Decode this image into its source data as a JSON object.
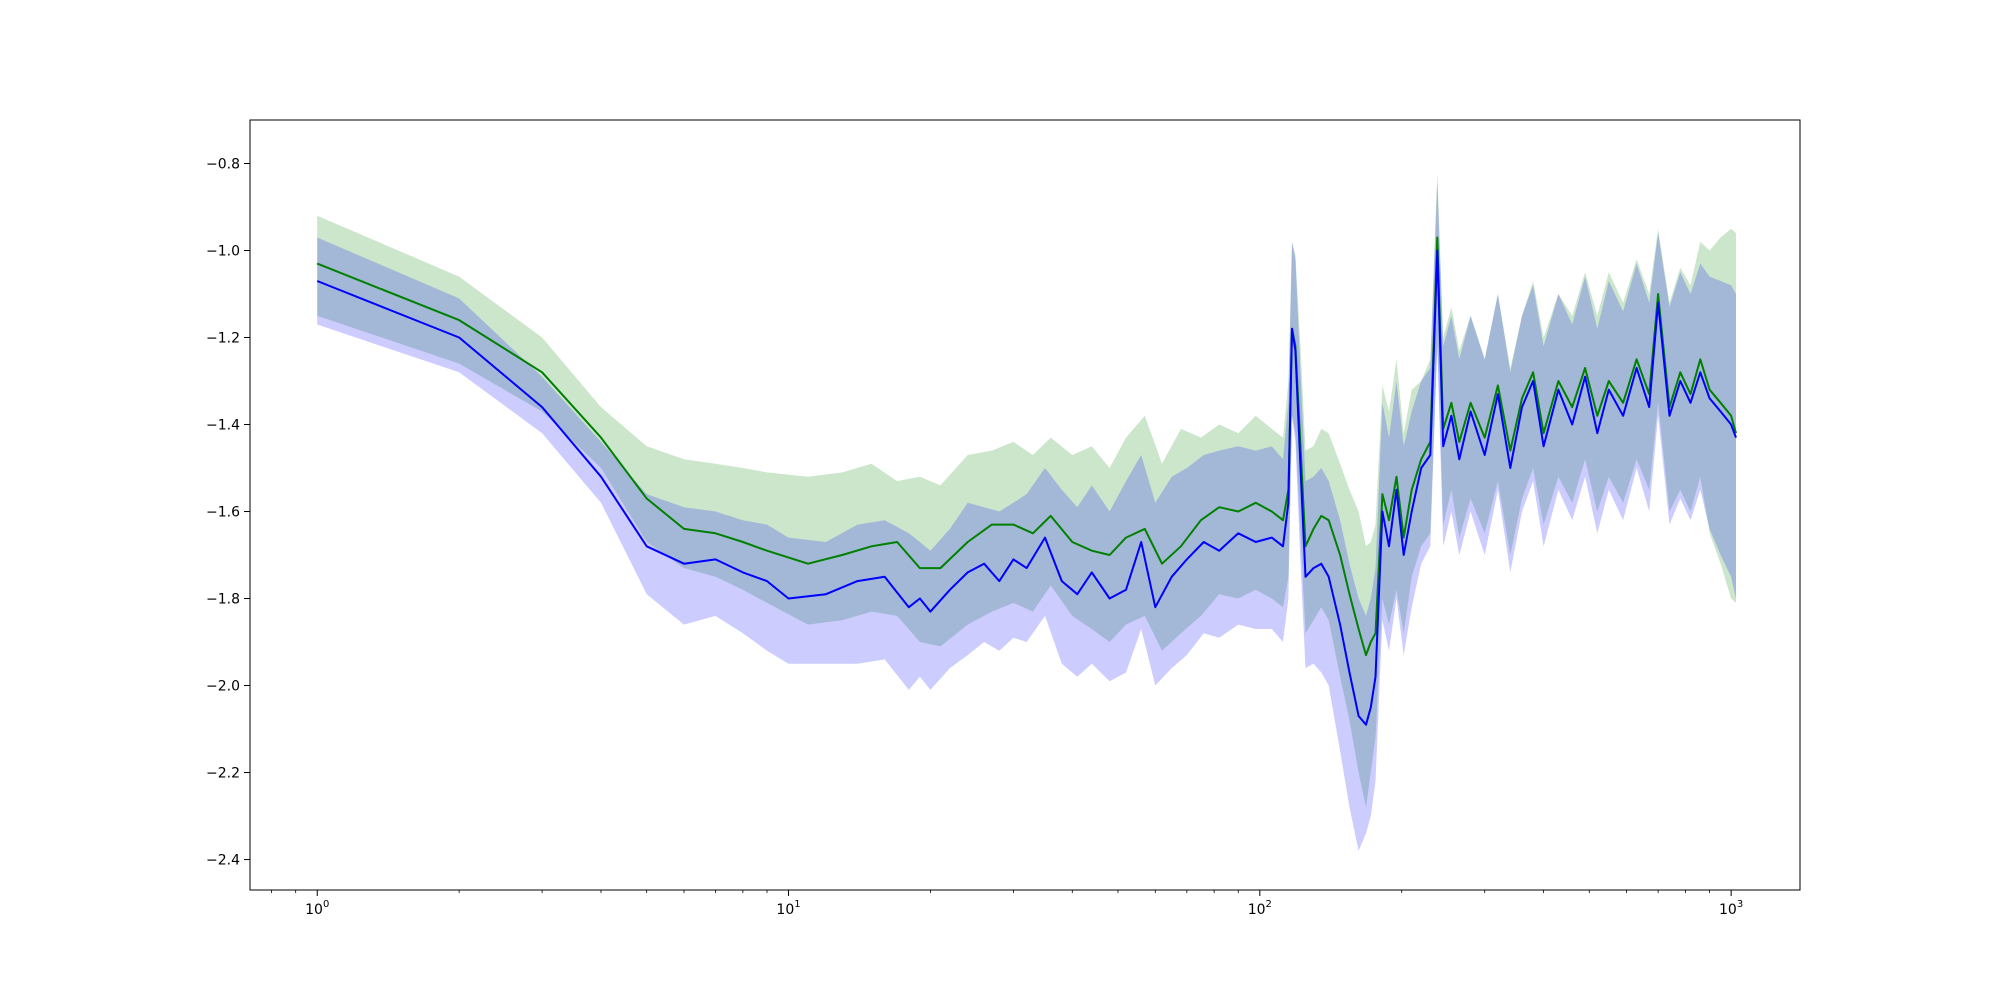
{
  "chart_data": {
    "type": "line",
    "title": "",
    "xlabel": "",
    "ylabel": "",
    "xscale": "log",
    "xlim": [
      0.72,
      1400
    ],
    "ylim": [
      -2.47,
      -0.7
    ],
    "x_ticks": [
      {
        "value": 1,
        "base": "10",
        "exp": "0"
      },
      {
        "value": 10,
        "base": "10",
        "exp": "1"
      },
      {
        "value": 100,
        "base": "10",
        "exp": "2"
      },
      {
        "value": 1000,
        "base": "10",
        "exp": "3"
      }
    ],
    "y_ticks": [
      {
        "value": -0.8,
        "label": "−0.8"
      },
      {
        "value": -1.0,
        "label": "−1.0"
      },
      {
        "value": -1.2,
        "label": "−1.2"
      },
      {
        "value": -1.4,
        "label": "−1.4"
      },
      {
        "value": -1.6,
        "label": "−1.6"
      },
      {
        "value": -1.8,
        "label": "−1.8"
      },
      {
        "value": -2.0,
        "label": "−2.0"
      },
      {
        "value": -2.2,
        "label": "−2.2"
      },
      {
        "value": -2.4,
        "label": "−2.4"
      }
    ],
    "grid": false,
    "legend": false,
    "band_opacity": 0.2,
    "series": [
      {
        "color": "#008000",
        "points": [
          [
            1,
            -1.03,
            -0.92,
            -1.15
          ],
          [
            2,
            -1.16,
            -1.06,
            -1.26
          ],
          [
            3,
            -1.28,
            -1.2,
            -1.37
          ],
          [
            4,
            -1.43,
            -1.36,
            -1.5
          ],
          [
            5,
            -1.57,
            -1.45,
            -1.67
          ],
          [
            6,
            -1.64,
            -1.48,
            -1.73
          ],
          [
            7,
            -1.65,
            -1.49,
            -1.75
          ],
          [
            8,
            -1.67,
            -1.5,
            -1.78
          ],
          [
            9,
            -1.69,
            -1.51,
            -1.81
          ],
          [
            11,
            -1.72,
            -1.52,
            -1.86
          ],
          [
            13,
            -1.7,
            -1.51,
            -1.85
          ],
          [
            15,
            -1.68,
            -1.49,
            -1.83
          ],
          [
            17,
            -1.67,
            -1.53,
            -1.84
          ],
          [
            19,
            -1.73,
            -1.52,
            -1.9
          ],
          [
            21,
            -1.73,
            -1.54,
            -1.91
          ],
          [
            24,
            -1.67,
            -1.47,
            -1.86
          ],
          [
            27,
            -1.63,
            -1.46,
            -1.83
          ],
          [
            30,
            -1.63,
            -1.44,
            -1.81
          ],
          [
            33,
            -1.65,
            -1.47,
            -1.83
          ],
          [
            36,
            -1.61,
            -1.43,
            -1.77
          ],
          [
            40,
            -1.67,
            -1.47,
            -1.84
          ],
          [
            44,
            -1.69,
            -1.45,
            -1.87
          ],
          [
            48,
            -1.7,
            -1.5,
            -1.9
          ],
          [
            52,
            -1.66,
            -1.43,
            -1.86
          ],
          [
            57,
            -1.64,
            -1.38,
            -1.84
          ],
          [
            62,
            -1.72,
            -1.49,
            -1.92
          ],
          [
            68,
            -1.68,
            -1.41,
            -1.88
          ],
          [
            75,
            -1.62,
            -1.43,
            -1.84
          ],
          [
            82,
            -1.59,
            -1.4,
            -1.79
          ],
          [
            90,
            -1.6,
            -1.42,
            -1.8
          ],
          [
            98,
            -1.58,
            -1.38,
            -1.78
          ],
          [
            106,
            -1.6,
            -1.41,
            -1.8
          ],
          [
            112,
            -1.62,
            -1.43,
            -1.82
          ],
          [
            115,
            -1.55,
            -1.3,
            -1.75
          ],
          [
            117,
            -1.18,
            -0.98,
            -1.38
          ],
          [
            119,
            -1.22,
            -1.01,
            -1.42
          ],
          [
            122,
            -1.45,
            -1.22,
            -1.65
          ],
          [
            125,
            -1.68,
            -1.46,
            -1.88
          ],
          [
            130,
            -1.64,
            -1.45,
            -1.85
          ],
          [
            135,
            -1.61,
            -1.41,
            -1.82
          ],
          [
            140,
            -1.62,
            -1.42,
            -1.85
          ],
          [
            148,
            -1.7,
            -1.49,
            -1.98
          ],
          [
            155,
            -1.79,
            -1.55,
            -2.08
          ],
          [
            162,
            -1.87,
            -1.6,
            -2.2
          ],
          [
            168,
            -1.93,
            -1.68,
            -2.28
          ],
          [
            172,
            -1.9,
            -1.67,
            -2.2
          ],
          [
            176,
            -1.88,
            -1.63,
            -2.12
          ],
          [
            182,
            -1.56,
            -1.31,
            -1.8
          ],
          [
            188,
            -1.62,
            -1.37,
            -1.86
          ],
          [
            195,
            -1.52,
            -1.25,
            -1.78
          ],
          [
            202,
            -1.66,
            -1.42,
            -1.88
          ],
          [
            210,
            -1.55,
            -1.32,
            -1.75
          ],
          [
            220,
            -1.48,
            -1.3,
            -1.68
          ],
          [
            230,
            -1.44,
            -1.25,
            -1.65
          ],
          [
            238,
            -0.97,
            -0.82,
            -1.21
          ],
          [
            245,
            -1.41,
            -1.2,
            -1.63
          ],
          [
            255,
            -1.35,
            -1.13,
            -1.55
          ],
          [
            265,
            -1.44,
            -1.23,
            -1.66
          ],
          [
            280,
            -1.35,
            -1.15,
            -1.57
          ],
          [
            300,
            -1.43,
            -1.25,
            -1.65
          ],
          [
            320,
            -1.31,
            -1.1,
            -1.53
          ],
          [
            340,
            -1.46,
            -1.27,
            -1.7
          ],
          [
            360,
            -1.34,
            -1.15,
            -1.57
          ],
          [
            380,
            -1.28,
            -1.07,
            -1.5
          ],
          [
            400,
            -1.42,
            -1.2,
            -1.63
          ],
          [
            430,
            -1.3,
            -1.1,
            -1.52
          ],
          [
            460,
            -1.36,
            -1.15,
            -1.58
          ],
          [
            490,
            -1.27,
            -1.05,
            -1.48
          ],
          [
            520,
            -1.38,
            -1.15,
            -1.6
          ],
          [
            550,
            -1.3,
            -1.05,
            -1.52
          ],
          [
            590,
            -1.35,
            -1.12,
            -1.58
          ],
          [
            630,
            -1.25,
            -1.02,
            -1.48
          ],
          [
            670,
            -1.33,
            -1.1,
            -1.55
          ],
          [
            700,
            -1.1,
            -0.95,
            -1.35
          ],
          [
            740,
            -1.36,
            -1.12,
            -1.6
          ],
          [
            780,
            -1.28,
            -1.04,
            -1.55
          ],
          [
            820,
            -1.33,
            -1.08,
            -1.6
          ],
          [
            860,
            -1.25,
            -0.98,
            -1.52
          ],
          [
            900,
            -1.32,
            -1.0,
            -1.65
          ],
          [
            950,
            -1.35,
            -0.97,
            -1.72
          ],
          [
            1000,
            -1.38,
            -0.95,
            -1.8
          ],
          [
            1024,
            -1.42,
            -0.96,
            -1.81
          ]
        ]
      },
      {
        "color": "#0000ff",
        "points": [
          [
            1,
            -1.07,
            -0.97,
            -1.17
          ],
          [
            2,
            -1.2,
            -1.11,
            -1.28
          ],
          [
            3,
            -1.36,
            -1.29,
            -1.42
          ],
          [
            4,
            -1.52,
            -1.44,
            -1.58
          ],
          [
            5,
            -1.68,
            -1.56,
            -1.79
          ],
          [
            6,
            -1.72,
            -1.59,
            -1.86
          ],
          [
            7,
            -1.71,
            -1.6,
            -1.84
          ],
          [
            8,
            -1.74,
            -1.62,
            -1.88
          ],
          [
            9,
            -1.76,
            -1.63,
            -1.92
          ],
          [
            10,
            -1.8,
            -1.66,
            -1.95
          ],
          [
            12,
            -1.79,
            -1.67,
            -1.95
          ],
          [
            14,
            -1.76,
            -1.63,
            -1.95
          ],
          [
            16,
            -1.75,
            -1.62,
            -1.94
          ],
          [
            18,
            -1.82,
            -1.65,
            -2.01
          ],
          [
            19,
            -1.8,
            -1.67,
            -1.98
          ],
          [
            20,
            -1.83,
            -1.69,
            -2.01
          ],
          [
            22,
            -1.78,
            -1.64,
            -1.96
          ],
          [
            24,
            -1.74,
            -1.58,
            -1.93
          ],
          [
            26,
            -1.72,
            -1.59,
            -1.9
          ],
          [
            28,
            -1.76,
            -1.6,
            -1.92
          ],
          [
            30,
            -1.71,
            -1.58,
            -1.89
          ],
          [
            32,
            -1.73,
            -1.56,
            -1.9
          ],
          [
            35,
            -1.66,
            -1.5,
            -1.84
          ],
          [
            38,
            -1.76,
            -1.55,
            -1.95
          ],
          [
            41,
            -1.79,
            -1.59,
            -1.98
          ],
          [
            44,
            -1.74,
            -1.54,
            -1.95
          ],
          [
            48,
            -1.8,
            -1.6,
            -1.99
          ],
          [
            52,
            -1.78,
            -1.53,
            -1.97
          ],
          [
            56,
            -1.67,
            -1.47,
            -1.87
          ],
          [
            60,
            -1.82,
            -1.58,
            -2.0
          ],
          [
            65,
            -1.75,
            -1.52,
            -1.96
          ],
          [
            70,
            -1.71,
            -1.5,
            -1.93
          ],
          [
            76,
            -1.67,
            -1.47,
            -1.88
          ],
          [
            82,
            -1.69,
            -1.46,
            -1.89
          ],
          [
            90,
            -1.65,
            -1.45,
            -1.86
          ],
          [
            98,
            -1.67,
            -1.46,
            -1.87
          ],
          [
            106,
            -1.66,
            -1.45,
            -1.87
          ],
          [
            112,
            -1.68,
            -1.48,
            -1.9
          ],
          [
            115,
            -1.58,
            -1.35,
            -1.8
          ],
          [
            117,
            -1.18,
            -0.98,
            -1.38
          ],
          [
            119,
            -1.23,
            -1.02,
            -1.44
          ],
          [
            122,
            -1.5,
            -1.28,
            -1.72
          ],
          [
            125,
            -1.75,
            -1.53,
            -1.96
          ],
          [
            130,
            -1.73,
            -1.52,
            -1.95
          ],
          [
            135,
            -1.72,
            -1.5,
            -1.97
          ],
          [
            140,
            -1.75,
            -1.53,
            -2.0
          ],
          [
            148,
            -1.86,
            -1.62,
            -2.15
          ],
          [
            155,
            -1.97,
            -1.72,
            -2.28
          ],
          [
            162,
            -2.07,
            -1.8,
            -2.38
          ],
          [
            168,
            -2.09,
            -1.84,
            -2.34
          ],
          [
            172,
            -2.05,
            -1.8,
            -2.3
          ],
          [
            176,
            -1.98,
            -1.73,
            -2.22
          ],
          [
            182,
            -1.6,
            -1.35,
            -1.85
          ],
          [
            188,
            -1.68,
            -1.43,
            -1.92
          ],
          [
            195,
            -1.55,
            -1.3,
            -1.8
          ],
          [
            202,
            -1.7,
            -1.45,
            -1.93
          ],
          [
            210,
            -1.6,
            -1.37,
            -1.82
          ],
          [
            220,
            -1.5,
            -1.3,
            -1.72
          ],
          [
            230,
            -1.47,
            -1.27,
            -1.68
          ],
          [
            238,
            -1.0,
            -0.84,
            -1.22
          ],
          [
            245,
            -1.45,
            -1.22,
            -1.68
          ],
          [
            255,
            -1.38,
            -1.15,
            -1.6
          ],
          [
            265,
            -1.48,
            -1.25,
            -1.7
          ],
          [
            280,
            -1.37,
            -1.15,
            -1.6
          ],
          [
            300,
            -1.47,
            -1.25,
            -1.7
          ],
          [
            320,
            -1.33,
            -1.1,
            -1.55
          ],
          [
            340,
            -1.5,
            -1.28,
            -1.74
          ],
          [
            360,
            -1.36,
            -1.15,
            -1.6
          ],
          [
            380,
            -1.3,
            -1.08,
            -1.53
          ],
          [
            400,
            -1.45,
            -1.22,
            -1.68
          ],
          [
            430,
            -1.32,
            -1.1,
            -1.55
          ],
          [
            460,
            -1.4,
            -1.17,
            -1.62
          ],
          [
            490,
            -1.29,
            -1.06,
            -1.52
          ],
          [
            520,
            -1.42,
            -1.18,
            -1.65
          ],
          [
            550,
            -1.32,
            -1.07,
            -1.55
          ],
          [
            590,
            -1.38,
            -1.14,
            -1.62
          ],
          [
            630,
            -1.27,
            -1.03,
            -1.5
          ],
          [
            670,
            -1.36,
            -1.12,
            -1.6
          ],
          [
            700,
            -1.12,
            -0.96,
            -1.38
          ],
          [
            740,
            -1.38,
            -1.13,
            -1.63
          ],
          [
            780,
            -1.3,
            -1.05,
            -1.57
          ],
          [
            820,
            -1.35,
            -1.1,
            -1.62
          ],
          [
            860,
            -1.28,
            -1.03,
            -1.55
          ],
          [
            900,
            -1.34,
            -1.06,
            -1.64
          ],
          [
            950,
            -1.37,
            -1.07,
            -1.7
          ],
          [
            1000,
            -1.4,
            -1.08,
            -1.75
          ],
          [
            1024,
            -1.43,
            -1.1,
            -1.8
          ]
        ]
      }
    ]
  }
}
